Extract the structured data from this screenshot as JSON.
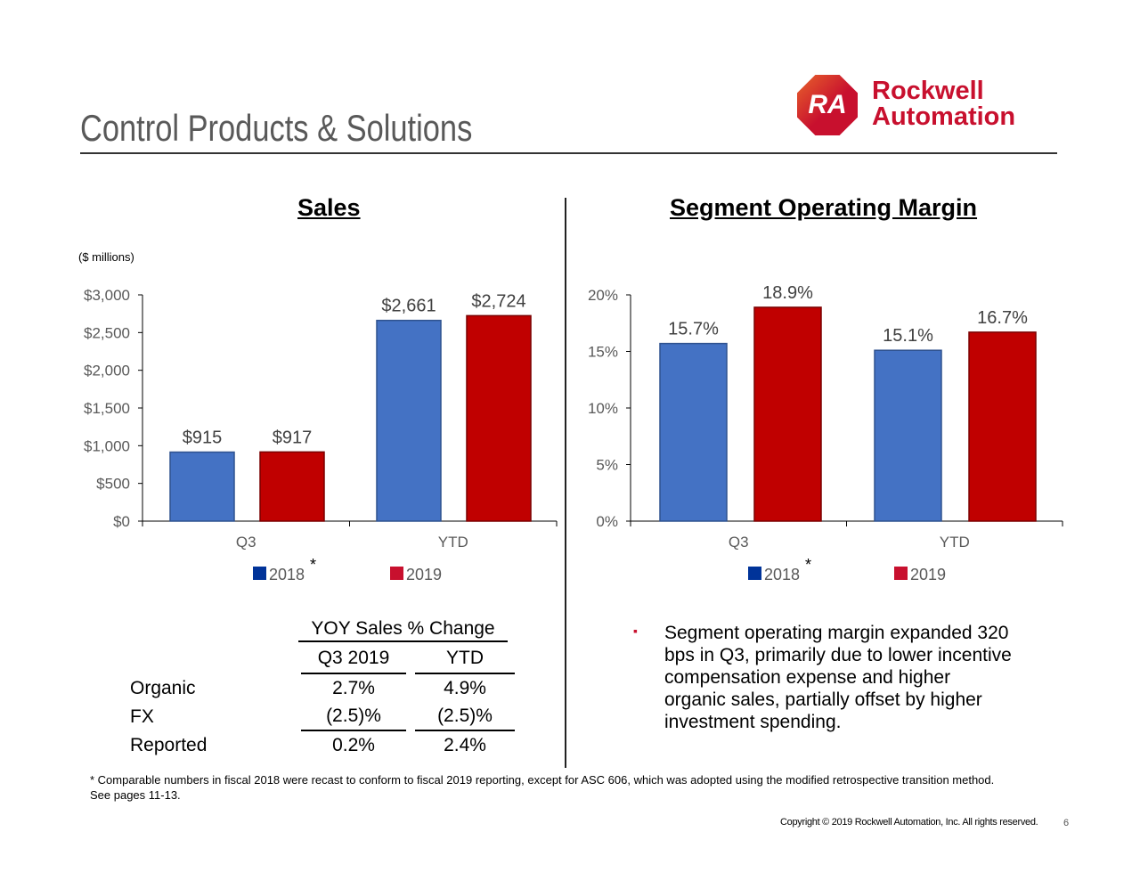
{
  "header": {
    "title": "Control Products & Solutions",
    "logo_text": "Rockwell Automation",
    "logo_mark": "RA"
  },
  "colors": {
    "series_2018": "#4472C4",
    "series_2019": "#C00000",
    "legend_2018": "#003399",
    "legend_2019": "#C8102E",
    "logo": "#C8102E"
  },
  "chart_data": [
    {
      "type": "bar",
      "title": "Sales",
      "unit_note": "($ millions)",
      "categories": [
        "Q3",
        "YTD"
      ],
      "series": [
        {
          "name": "2018",
          "marker": "*",
          "values": [
            915,
            2661
          ],
          "labels": [
            "$915",
            "$2,661"
          ]
        },
        {
          "name": "2019",
          "values": [
            917,
            2724
          ],
          "labels": [
            "$917",
            "$2,724"
          ]
        }
      ],
      "ylim": [
        0,
        3000
      ],
      "yticks": [
        "$0",
        "$500",
        "$1,000",
        "$1,500",
        "$2,000",
        "$2,500",
        "$3,000"
      ],
      "legend": "bottom",
      "grid": false
    },
    {
      "type": "bar",
      "title": "Segment Operating Margin",
      "categories": [
        "Q3",
        "YTD"
      ],
      "series": [
        {
          "name": "2018",
          "marker": "*",
          "values": [
            15.7,
            15.1
          ],
          "labels": [
            "15.7%",
            "15.1%"
          ]
        },
        {
          "name": "2019",
          "values": [
            18.9,
            16.7
          ],
          "labels": [
            "18.9%",
            "16.7%"
          ]
        }
      ],
      "ylim": [
        0,
        20
      ],
      "yticks": [
        "0%",
        "5%",
        "10%",
        "15%",
        "20%"
      ],
      "legend": "bottom",
      "grid": false
    }
  ],
  "yoy_table": {
    "title": "YOY Sales % Change",
    "columns": [
      "Q3 2019",
      "YTD"
    ],
    "rows": [
      {
        "label": "Organic",
        "values": [
          "2.7%",
          "4.9%"
        ]
      },
      {
        "label": "FX",
        "values": [
          "(2.5)%",
          "(2.5)%"
        ]
      },
      {
        "label": "Reported",
        "values": [
          "0.2%",
          "2.4%"
        ]
      }
    ]
  },
  "bullet": "Segment operating margin expanded 320 bps in Q3, primarily due to lower incentive compensation expense and higher organic sales, partially offset by higher investment spending.",
  "footnote": "* Comparable numbers in fiscal 2018 were recast to conform to fiscal 2019 reporting, except for ASC 606, which was adopted using the modified retrospective transition method.  See pages 11-13.",
  "footer": {
    "copyright": "Copyright © 2019 Rockwell Automation, Inc.  All rights reserved.",
    "page": "6"
  }
}
